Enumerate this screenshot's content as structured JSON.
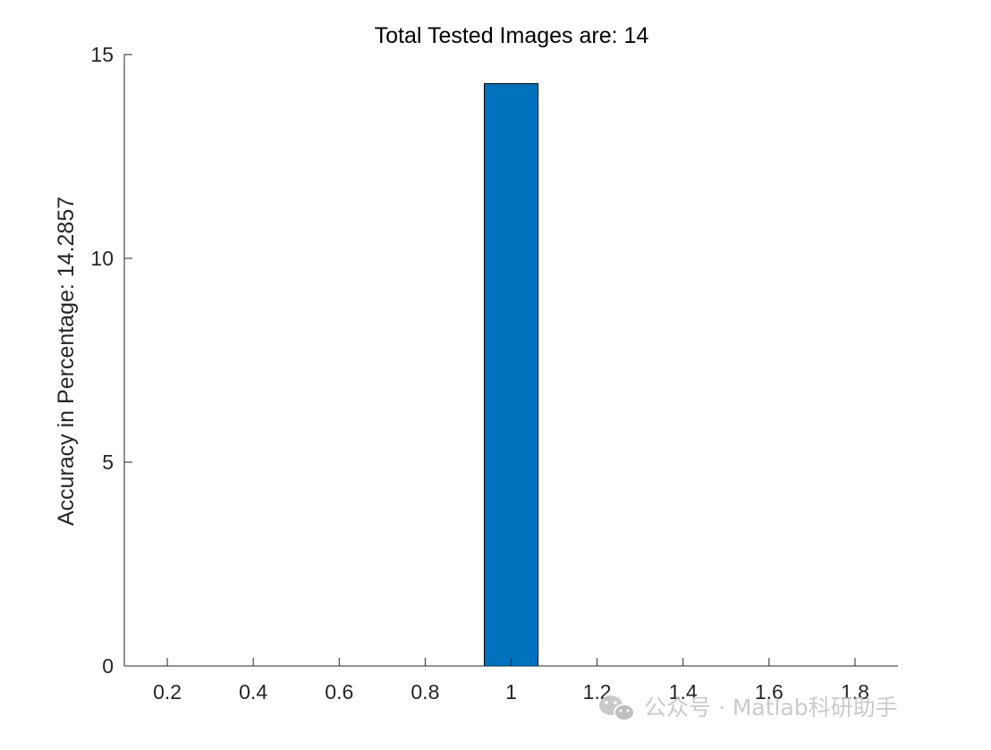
{
  "chart_data": {
    "type": "bar",
    "title": "Total Tested Images are: 14",
    "xlabel": "",
    "ylabel": "Accuracy in Percentage: 14.2857",
    "x": [
      1
    ],
    "values": [
      14.2857
    ],
    "xlim": [
      0.1,
      1.9
    ],
    "ylim": [
      0,
      15
    ],
    "xticks": [
      0.2,
      0.4,
      0.6,
      0.8,
      1,
      1.2,
      1.4,
      1.6,
      1.8
    ],
    "xtick_labels": [
      "0.2",
      "0.4",
      "0.6",
      "0.8",
      "1",
      "1.2",
      "1.4",
      "1.6",
      "1.8"
    ],
    "yticks": [
      0,
      5,
      10,
      15
    ],
    "ytick_labels": [
      "0",
      "5",
      "10",
      "15"
    ],
    "bar_width": 0.125,
    "bar_color": "#0072BD",
    "grid": false,
    "legend": "none"
  },
  "watermark": {
    "text": "公众号 · Matlab科研助手",
    "icon": "wechat-icon"
  }
}
